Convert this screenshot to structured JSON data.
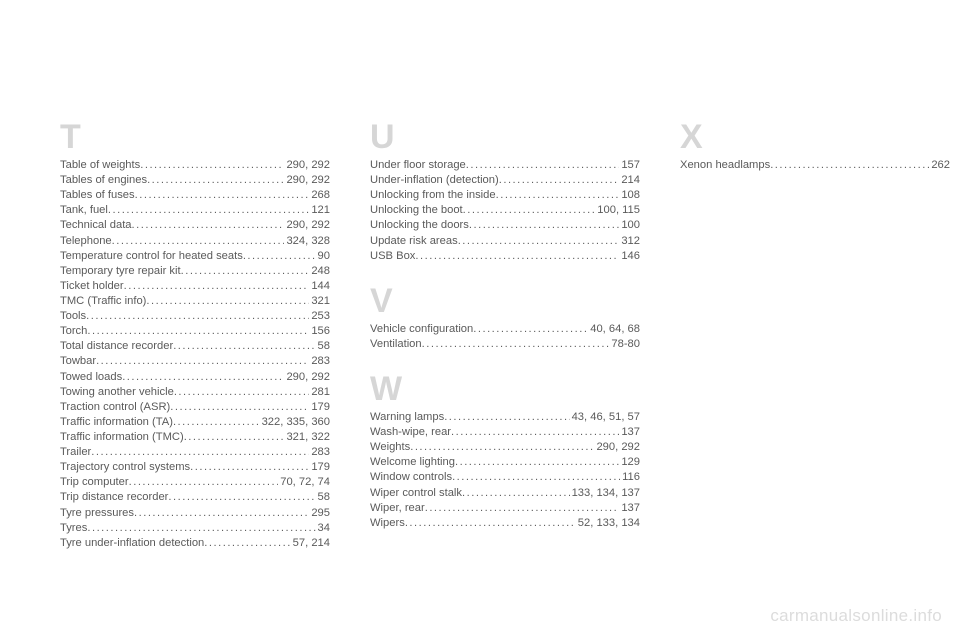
{
  "watermark": "carmanualsonline.info",
  "columns": [
    {
      "sections": [
        {
          "letter": "T",
          "entries": [
            {
              "label": "Table of weights",
              "pages": "290, 292"
            },
            {
              "label": "Tables of engines",
              "pages": "290, 292"
            },
            {
              "label": "Tables of fuses",
              "pages": "268"
            },
            {
              "label": "Tank, fuel",
              "pages": "121"
            },
            {
              "label": "Technical data",
              "pages": "290, 292"
            },
            {
              "label": "Telephone",
              "pages": "324, 328"
            },
            {
              "label": "Temperature control for heated seats",
              "pages": "90"
            },
            {
              "label": "Temporary tyre repair kit",
              "pages": "248"
            },
            {
              "label": "Ticket holder",
              "pages": "144"
            },
            {
              "label": "TMC (Traffic info)",
              "pages": "321"
            },
            {
              "label": "Tools",
              "pages": "253"
            },
            {
              "label": "Torch",
              "pages": "156"
            },
            {
              "label": "Total distance recorder",
              "pages": "58"
            },
            {
              "label": "Towbar",
              "pages": "283"
            },
            {
              "label": "Towed loads",
              "pages": "290, 292"
            },
            {
              "label": "Towing another vehicle",
              "pages": "281"
            },
            {
              "label": "Traction control (ASR)",
              "pages": "179"
            },
            {
              "label": "Traffic information (TA)",
              "pages": "322, 335, 360"
            },
            {
              "label": "Traffic information (TMC)",
              "pages": "321, 322"
            },
            {
              "label": "Trailer",
              "pages": "283"
            },
            {
              "label": "Trajectory control systems",
              "pages": "179"
            },
            {
              "label": "Trip computer",
              "pages": "70, 72, 74"
            },
            {
              "label": "Trip distance recorder",
              "pages": "58"
            },
            {
              "label": "Tyre pressures",
              "pages": "295"
            },
            {
              "label": "Tyres",
              "pages": "34"
            },
            {
              "label": "Tyre under-inflation detection",
              "pages": "57, 214"
            }
          ]
        }
      ]
    },
    {
      "sections": [
        {
          "letter": "U",
          "entries": [
            {
              "label": "Under floor storage",
              "pages": "157"
            },
            {
              "label": "Under-inflation (detection)",
              "pages": "214"
            },
            {
              "label": "Unlocking from the inside",
              "pages": "108"
            },
            {
              "label": "Unlocking the boot",
              "pages": "100, 115"
            },
            {
              "label": "Unlocking the doors",
              "pages": "100"
            },
            {
              "label": "Update risk areas",
              "pages": "312"
            },
            {
              "label": "USB Box",
              "pages": "146"
            }
          ]
        },
        {
          "letter": "V",
          "entries": [
            {
              "label": "Vehicle configuration",
              "pages": "40, 64, 68"
            },
            {
              "label": "Ventilation",
              "pages": "78-80"
            }
          ]
        },
        {
          "letter": "W",
          "entries": [
            {
              "label": "Warning lamps",
              "pages": "43, 46, 51, 57"
            },
            {
              "label": "Wash-wipe, rear",
              "pages": "137"
            },
            {
              "label": "Weights",
              "pages": "290, 292"
            },
            {
              "label": "Welcome lighting",
              "pages": "129"
            },
            {
              "label": "Window controls",
              "pages": "116"
            },
            {
              "label": "Wiper control stalk",
              "pages": "133, 134, 137"
            },
            {
              "label": "Wiper, rear",
              "pages": "137"
            },
            {
              "label": "Wipers",
              "pages": "52, 133, 134"
            }
          ]
        }
      ]
    },
    {
      "sections": [
        {
          "letter": "X",
          "entries": [
            {
              "label": "Xenon headlamps",
              "pages": "262"
            }
          ]
        }
      ]
    }
  ]
}
